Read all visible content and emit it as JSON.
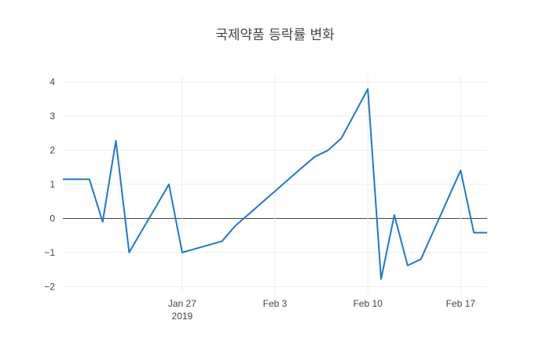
{
  "chart_data": {
    "type": "line",
    "title": "국제약품 등락률 변화",
    "xlabel": "",
    "ylabel": "",
    "x_axis_type": "date",
    "xlim": [
      "2019-01-18",
      "2019-02-19"
    ],
    "ylim": [
      -2.2,
      4.2
    ],
    "grid": true,
    "legend": "none",
    "x_ticks": [
      {
        "date": "2019-01-27",
        "label": "Jan 27",
        "sublabel": "2019"
      },
      {
        "date": "2019-02-03",
        "label": "Feb 3",
        "sublabel": ""
      },
      {
        "date": "2019-02-10",
        "label": "Feb 10",
        "sublabel": ""
      },
      {
        "date": "2019-02-17",
        "label": "Feb 17",
        "sublabel": ""
      }
    ],
    "y_ticks": [
      {
        "value": 4,
        "label": "4"
      },
      {
        "value": 3,
        "label": "3"
      },
      {
        "value": 2,
        "label": "2"
      },
      {
        "value": 1,
        "label": "1"
      },
      {
        "value": 0,
        "label": "0"
      },
      {
        "value": -1,
        "label": "−1"
      },
      {
        "value": -2,
        "label": "−2"
      }
    ],
    "series": [
      {
        "color": "#1f77d4",
        "x": [
          "2019-01-18",
          "2019-01-19",
          "2019-01-20",
          "2019-01-21",
          "2019-01-22",
          "2019-01-23",
          "2019-01-24",
          "2019-01-25",
          "2019-01-26",
          "2019-01-27",
          "2019-01-28",
          "2019-01-29",
          "2019-01-30",
          "2019-01-31",
          "2019-02-01",
          "2019-02-02",
          "2019-02-03",
          "2019-02-04",
          "2019-02-05",
          "2019-02-06",
          "2019-02-07",
          "2019-02-08",
          "2019-02-09",
          "2019-02-10",
          "2019-02-11",
          "2019-02-12",
          "2019-02-13",
          "2019-02-14",
          "2019-02-15",
          "2019-02-16",
          "2019-02-17",
          "2019-02-18",
          "2019-02-19"
        ],
        "y": [
          1.15,
          1.15,
          1.15,
          -0.1,
          2.28,
          -1.0,
          -0.33,
          0.33,
          1.0,
          -1.0,
          -0.89,
          -0.78,
          -0.67,
          -0.22,
          0.12,
          0.46,
          0.8,
          1.14,
          1.48,
          1.81,
          2.0,
          2.35,
          3.07,
          3.8,
          -1.78,
          0.1,
          -1.38,
          -1.2,
          -0.33,
          0.54,
          1.41,
          -0.42,
          -0.42
        ]
      }
    ]
  }
}
